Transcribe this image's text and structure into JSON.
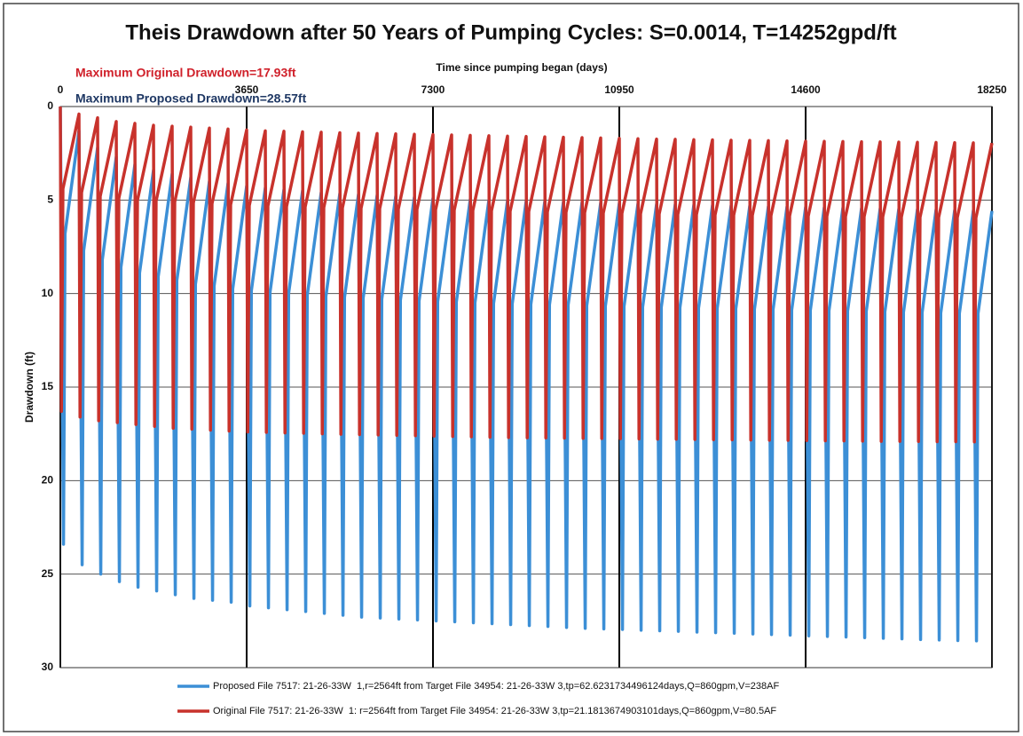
{
  "chart_data": {
    "type": "line",
    "title": "Theis Drawdown after 50 Years of Pumping Cycles: S=0.0014, T=14252gpd/ft",
    "x_label": "Time since pumping began (days)",
    "y_label": "Drawdown (ft)",
    "x_axis_position": "top",
    "annotations": [
      "Maximum Original Drawdown=17.93ft",
      "Maximum Proposed Drawdown=28.57ft"
    ],
    "annotation_colors": [
      "#d0202a",
      "#1f3864"
    ],
    "xlim": [
      0,
      18250
    ],
    "xticks": [
      0,
      3650,
      7300,
      10950,
      14600,
      18250
    ],
    "ylim": [
      30,
      0
    ],
    "yticks": [
      0,
      5,
      10,
      15,
      20,
      25,
      30
    ],
    "grid": true,
    "legend": "bottom",
    "series": [
      {
        "name": "Proposed File 7517: 21-26-33W  1,r=2564ft from Target File 34954: 21-26-33W 3,tp=62.6231734496124days,Q=860gpm,V=238AF",
        "color": "#3c8fd6",
        "x": [
          0,
          62,
          92,
          365,
          427,
          457,
          730,
          792,
          822,
          1095,
          1157,
          1187,
          1460,
          1522,
          1552,
          1825,
          1887,
          1917,
          2190,
          2252,
          2282,
          2555,
          2617,
          2647,
          2920,
          2982,
          3012,
          3285,
          3347,
          3377,
          3650,
          3712,
          3742,
          4015,
          4077,
          4107,
          4380,
          4442,
          4472,
          4745,
          4807,
          4837,
          5110,
          5172,
          5202,
          5475,
          5537,
          5567,
          5840,
          5902,
          5932,
          6205,
          6267,
          6297,
          6570,
          6632,
          6662,
          6935,
          6997,
          7027,
          7300,
          7362,
          7392,
          7665,
          7727,
          7757,
          8030,
          8092,
          8122,
          8395,
          8457,
          8487,
          8760,
          8822,
          8852,
          9125,
          9187,
          9217,
          9490,
          9552,
          9582,
          9855,
          9917,
          9947,
          10220,
          10282,
          10312,
          10585,
          10647,
          10677,
          10950,
          11012,
          11042,
          11315,
          11377,
          11407,
          11680,
          11742,
          11772,
          12045,
          12107,
          12137,
          12410,
          12472,
          12502,
          12775,
          12837,
          12867,
          13140,
          13202,
          13232,
          13505,
          13567,
          13597,
          13870,
          13932,
          13962,
          14235,
          14297,
          14327,
          14600,
          14662,
          14692,
          14965,
          15027,
          15057,
          15330,
          15392,
          15422,
          15695,
          15757,
          15787,
          16060,
          16122,
          16152,
          16425,
          16487,
          16517,
          16790,
          16852,
          16882,
          17155,
          17217,
          17247,
          17520,
          17582,
          17612,
          17885,
          17947,
          17977,
          18250
        ],
        "values": [
          0,
          23.4,
          6.8,
          1.3,
          24.5,
          7.7,
          2.2,
          25.0,
          8.2,
          2.7,
          25.4,
          8.6,
          3.1,
          25.7,
          8.9,
          3.4,
          25.9,
          9.1,
          3.6,
          26.1,
          9.3,
          3.8,
          26.3,
          9.5,
          4.0,
          26.4,
          9.6,
          4.1,
          26.5,
          9.75,
          4.25,
          26.7,
          9.85,
          4.35,
          26.8,
          9.95,
          4.45,
          26.9,
          10.0,
          4.5,
          27.0,
          10.1,
          4.6,
          27.1,
          10.15,
          4.65,
          27.2,
          10.2,
          4.7,
          27.3,
          10.25,
          4.75,
          27.35,
          10.3,
          4.8,
          27.4,
          10.35,
          4.85,
          27.45,
          10.4,
          4.9,
          27.5,
          10.43,
          4.93,
          27.55,
          10.46,
          4.96,
          27.6,
          10.5,
          5.0,
          27.65,
          10.53,
          5.03,
          27.7,
          10.56,
          5.06,
          27.75,
          10.58,
          5.08,
          27.8,
          10.6,
          5.1,
          27.85,
          10.62,
          5.12,
          27.9,
          10.65,
          5.15,
          27.93,
          10.67,
          5.17,
          27.96,
          10.7,
          5.2,
          28.0,
          10.72,
          5.22,
          28.03,
          10.74,
          5.24,
          28.06,
          10.76,
          5.26,
          28.1,
          10.78,
          5.28,
          28.13,
          10.8,
          5.3,
          28.16,
          10.82,
          5.32,
          28.2,
          10.84,
          5.34,
          28.23,
          10.86,
          5.36,
          28.26,
          10.88,
          5.38,
          28.3,
          10.9,
          5.4,
          28.33,
          10.92,
          5.42,
          28.36,
          10.94,
          5.44,
          28.4,
          10.96,
          5.46,
          28.43,
          10.98,
          5.48,
          28.46,
          11.0,
          5.5,
          28.5,
          11.02,
          5.52,
          28.52,
          11.04,
          5.54,
          28.55,
          11.06,
          5.56,
          28.57,
          11.08,
          5.58
        ]
      },
      {
        "name": "Original File 7517: 21-26-33W  1: r=2564ft from Target File 34954: 21-26-33W 3,tp=21.1813674903101days,Q=860gpm,V=80.5AF",
        "color": "#c8322c",
        "x": [
          0,
          21,
          51,
          365,
          386,
          416,
          730,
          751,
          781,
          1095,
          1116,
          1146,
          1460,
          1481,
          1511,
          1825,
          1846,
          1876,
          2190,
          2211,
          2241,
          2555,
          2576,
          2606,
          2920,
          2941,
          2971,
          3285,
          3306,
          3336,
          3650,
          3671,
          3701,
          4015,
          4036,
          4066,
          4380,
          4401,
          4431,
          4745,
          4766,
          4796,
          5110,
          5131,
          5161,
          5475,
          5496,
          5526,
          5840,
          5861,
          5891,
          6205,
          6226,
          6256,
          6570,
          6591,
          6621,
          6935,
          6956,
          6986,
          7300,
          7321,
          7351,
          7665,
          7686,
          7716,
          8030,
          8051,
          8081,
          8395,
          8416,
          8446,
          8760,
          8781,
          8811,
          9125,
          9146,
          9176,
          9490,
          9511,
          9541,
          9855,
          9876,
          9906,
          10220,
          10241,
          10271,
          10585,
          10606,
          10636,
          10950,
          10971,
          11001,
          11315,
          11336,
          11366,
          11680,
          11701,
          11731,
          12045,
          12066,
          12096,
          12410,
          12431,
          12461,
          12775,
          12796,
          12826,
          13140,
          13161,
          13191,
          13505,
          13526,
          13556,
          13870,
          13891,
          13921,
          14235,
          14256,
          14286,
          14600,
          14621,
          14651,
          14965,
          14986,
          15016,
          15330,
          15351,
          15381,
          15695,
          15716,
          15746,
          16060,
          16081,
          16111,
          16425,
          16446,
          16476,
          16790,
          16811,
          16841,
          17155,
          17176,
          17206,
          17520,
          17541,
          17571,
          17885,
          17906,
          17936,
          18250
        ],
        "values": [
          0,
          16.3,
          4.4,
          0.4,
          16.6,
          4.6,
          0.6,
          16.8,
          4.8,
          0.8,
          16.9,
          4.9,
          0.9,
          17.0,
          5.0,
          1.0,
          17.1,
          5.05,
          1.05,
          17.2,
          5.1,
          1.1,
          17.25,
          5.15,
          1.15,
          17.3,
          5.2,
          1.2,
          17.35,
          5.25,
          1.25,
          17.4,
          5.3,
          1.3,
          17.42,
          5.32,
          1.32,
          17.45,
          5.35,
          1.35,
          17.47,
          5.37,
          1.37,
          17.5,
          5.4,
          1.4,
          17.52,
          5.42,
          1.42,
          17.54,
          5.44,
          1.44,
          17.56,
          5.46,
          1.46,
          17.58,
          5.48,
          1.48,
          17.6,
          5.5,
          1.5,
          17.62,
          5.52,
          1.52,
          17.64,
          5.54,
          1.54,
          17.66,
          5.56,
          1.56,
          17.68,
          5.58,
          1.58,
          17.7,
          5.6,
          1.6,
          17.71,
          5.62,
          1.62,
          17.72,
          5.64,
          1.64,
          17.73,
          5.66,
          1.66,
          17.74,
          5.68,
          1.68,
          17.75,
          5.7,
          1.7,
          17.76,
          5.72,
          1.72,
          17.77,
          5.74,
          1.74,
          17.78,
          5.75,
          1.75,
          17.79,
          5.77,
          1.77,
          17.8,
          5.78,
          1.78,
          17.81,
          5.8,
          1.8,
          17.82,
          5.81,
          1.81,
          17.83,
          5.82,
          1.82,
          17.84,
          5.84,
          1.84,
          17.85,
          5.85,
          1.85,
          17.86,
          5.86,
          1.86,
          17.87,
          5.87,
          1.87,
          17.88,
          5.88,
          1.88,
          17.89,
          5.89,
          1.89,
          17.9,
          5.9,
          1.9,
          17.9,
          5.91,
          1.91,
          17.91,
          5.92,
          1.92,
          17.92,
          5.93,
          1.93,
          17.92,
          5.94,
          1.94,
          17.93,
          5.95,
          1.95
        ]
      }
    ]
  }
}
